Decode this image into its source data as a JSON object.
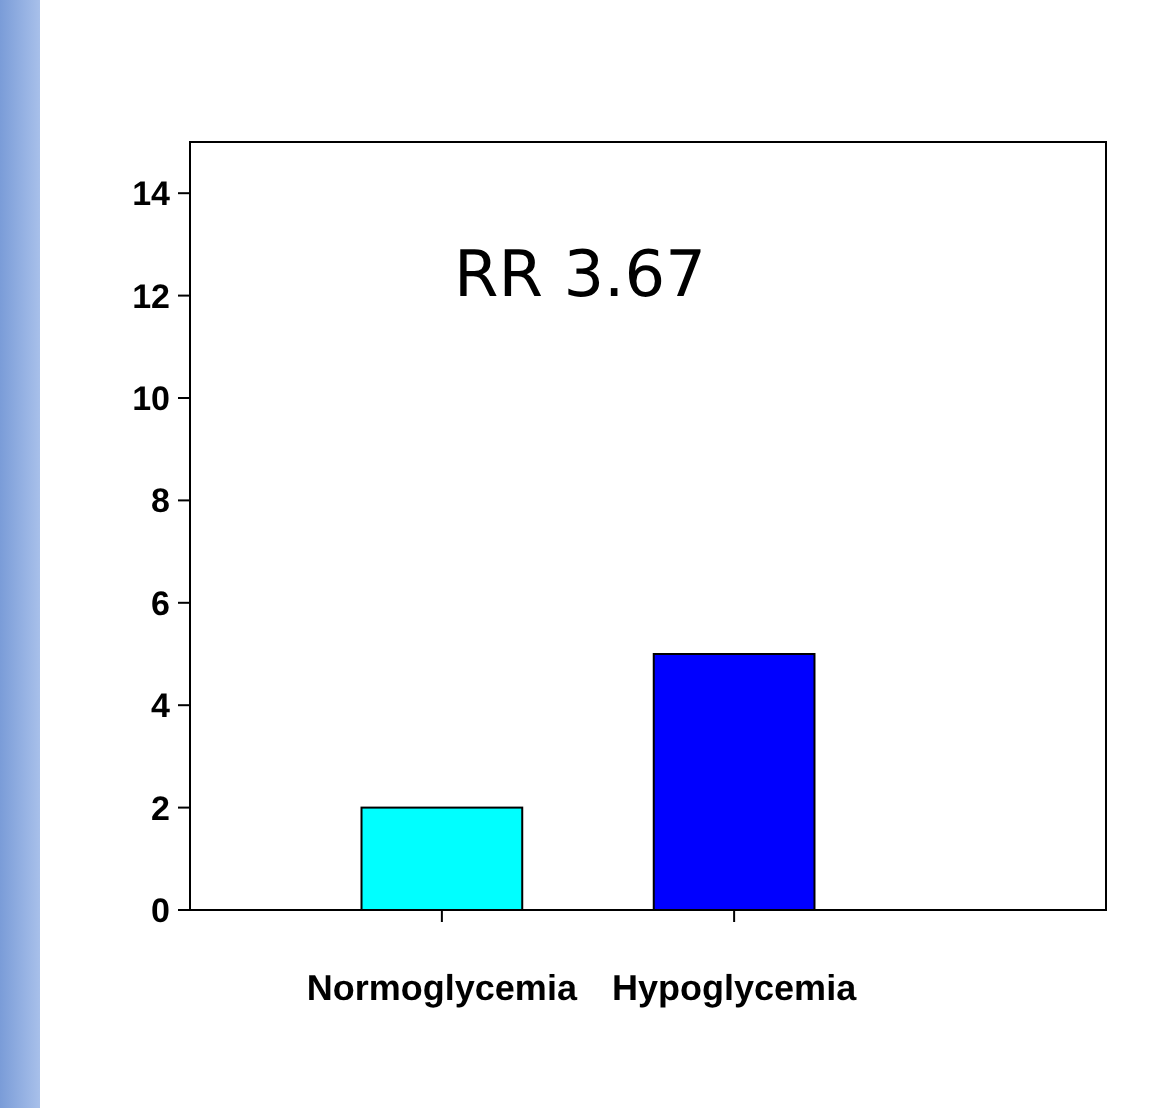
{
  "chart_data": {
    "type": "bar",
    "categories": [
      "Normoglycemia",
      "Hypoglycemia"
    ],
    "values": [
      2,
      5
    ],
    "colors": [
      "#00ffff",
      "#0000ff"
    ],
    "ylim": [
      0,
      15
    ],
    "yticks": [
      0,
      2,
      4,
      6,
      8,
      10,
      12,
      14
    ],
    "annotations": [
      "RR 3.67"
    ],
    "grid": false
  }
}
